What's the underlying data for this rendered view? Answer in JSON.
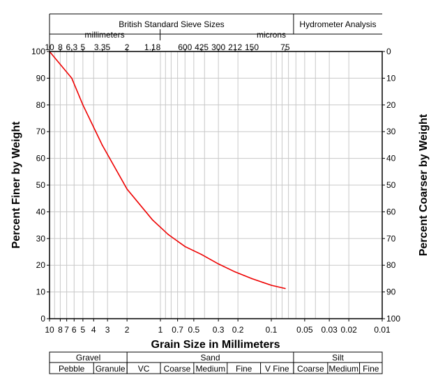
{
  "chart_data": {
    "type": "line",
    "title": "",
    "xlabel": "Grain Size in Millimeters",
    "ylabel": "Percent Finer by Weight",
    "ylabel_right": "Percent Coarser by Weight",
    "x_scale": "log",
    "x_reversed": true,
    "xlim": [
      10,
      0.01
    ],
    "ylim": [
      0,
      100
    ],
    "grid": true,
    "y_ticks": [
      "0",
      "10",
      "20",
      "30",
      "40",
      "50",
      "60",
      "70",
      "80",
      "90",
      "100"
    ],
    "y_ticks_right": [
      "100",
      "90",
      "80",
      "70",
      "60",
      "50",
      "40",
      "30",
      "20",
      "10",
      "0"
    ],
    "x_ticks": [
      {
        "x": 10,
        "label": "10"
      },
      {
        "x": 8,
        "label": "8"
      },
      {
        "x": 7,
        "label": "7"
      },
      {
        "x": 6,
        "label": "6"
      },
      {
        "x": 5,
        "label": "5"
      },
      {
        "x": 4,
        "label": "4"
      },
      {
        "x": 3,
        "label": "3"
      },
      {
        "x": 2,
        "label": "2"
      },
      {
        "x": 1,
        "label": "1"
      },
      {
        "x": 0.7,
        "label": "0.7"
      },
      {
        "x": 0.5,
        "label": "0.5"
      },
      {
        "x": 0.3,
        "label": "0.3"
      },
      {
        "x": 0.2,
        "label": "0.2"
      },
      {
        "x": 0.1,
        "label": "0.1"
      },
      {
        "x": 0.05,
        "label": "0.05"
      },
      {
        "x": 0.03,
        "label": "0.03"
      },
      {
        "x": 0.02,
        "label": "0.02"
      },
      {
        "x": 0.01,
        "label": "0.01"
      }
    ],
    "top_header": {
      "sieve_title": "British Standard Sieve Sizes",
      "hydrometer_title": "Hydrometer Analysis",
      "mm_label": "millimeters",
      "microns_label": "microns",
      "sieve_ticks": [
        {
          "x": 10,
          "label": "10"
        },
        {
          "x": 8,
          "label": "8"
        },
        {
          "x": 6.3,
          "label": "6.3"
        },
        {
          "x": 5,
          "label": "5"
        },
        {
          "x": 3.35,
          "label": "3.35"
        },
        {
          "x": 2,
          "label": "2"
        },
        {
          "x": 1.18,
          "label": "1.18"
        },
        {
          "x": 0.6,
          "label": "600"
        },
        {
          "x": 0.425,
          "label": "425"
        },
        {
          "x": 0.3,
          "label": "300"
        },
        {
          "x": 0.212,
          "label": "212"
        },
        {
          "x": 0.15,
          "label": "150"
        },
        {
          "x": 0.075,
          "label": "75"
        }
      ]
    },
    "bottom_classes": {
      "groups": [
        {
          "label": "Gravel",
          "from": 10,
          "to": 2
        },
        {
          "label": "Sand",
          "from": 2,
          "to": 0.063
        },
        {
          "label": "Silt",
          "from": 0.063,
          "to": 0.01
        }
      ],
      "subclasses": [
        {
          "label": "Pebble",
          "from": 10,
          "to": 4
        },
        {
          "label": "Granule",
          "from": 4,
          "to": 2
        },
        {
          "label": "VC",
          "from": 2,
          "to": 1
        },
        {
          "label": "Coarse",
          "from": 1,
          "to": 0.5
        },
        {
          "label": "Medium",
          "from": 0.5,
          "to": 0.25
        },
        {
          "label": "Fine",
          "from": 0.25,
          "to": 0.125
        },
        {
          "label": "V Fine",
          "from": 0.125,
          "to": 0.063
        },
        {
          "label": "Coarse",
          "from": 0.063,
          "to": 0.031
        },
        {
          "label": "Medium",
          "from": 0.031,
          "to": 0.016
        },
        {
          "label": "Fine",
          "from": 0.016,
          "to": 0.01
        }
      ]
    },
    "series": [
      {
        "color": "#ee0000",
        "points": [
          {
            "x": 10,
            "y": 100
          },
          {
            "x": 6.3,
            "y": 90
          },
          {
            "x": 5,
            "y": 80
          },
          {
            "x": 3.35,
            "y": 65
          },
          {
            "x": 2,
            "y": 48.5
          },
          {
            "x": 1.18,
            "y": 37
          },
          {
            "x": 0.85,
            "y": 31.5
          },
          {
            "x": 0.6,
            "y": 27
          },
          {
            "x": 0.425,
            "y": 24
          },
          {
            "x": 0.3,
            "y": 20.5
          },
          {
            "x": 0.212,
            "y": 17.5
          },
          {
            "x": 0.15,
            "y": 15
          },
          {
            "x": 0.1,
            "y": 12.5
          },
          {
            "x": 0.075,
            "y": 11.3
          }
        ]
      }
    ]
  }
}
